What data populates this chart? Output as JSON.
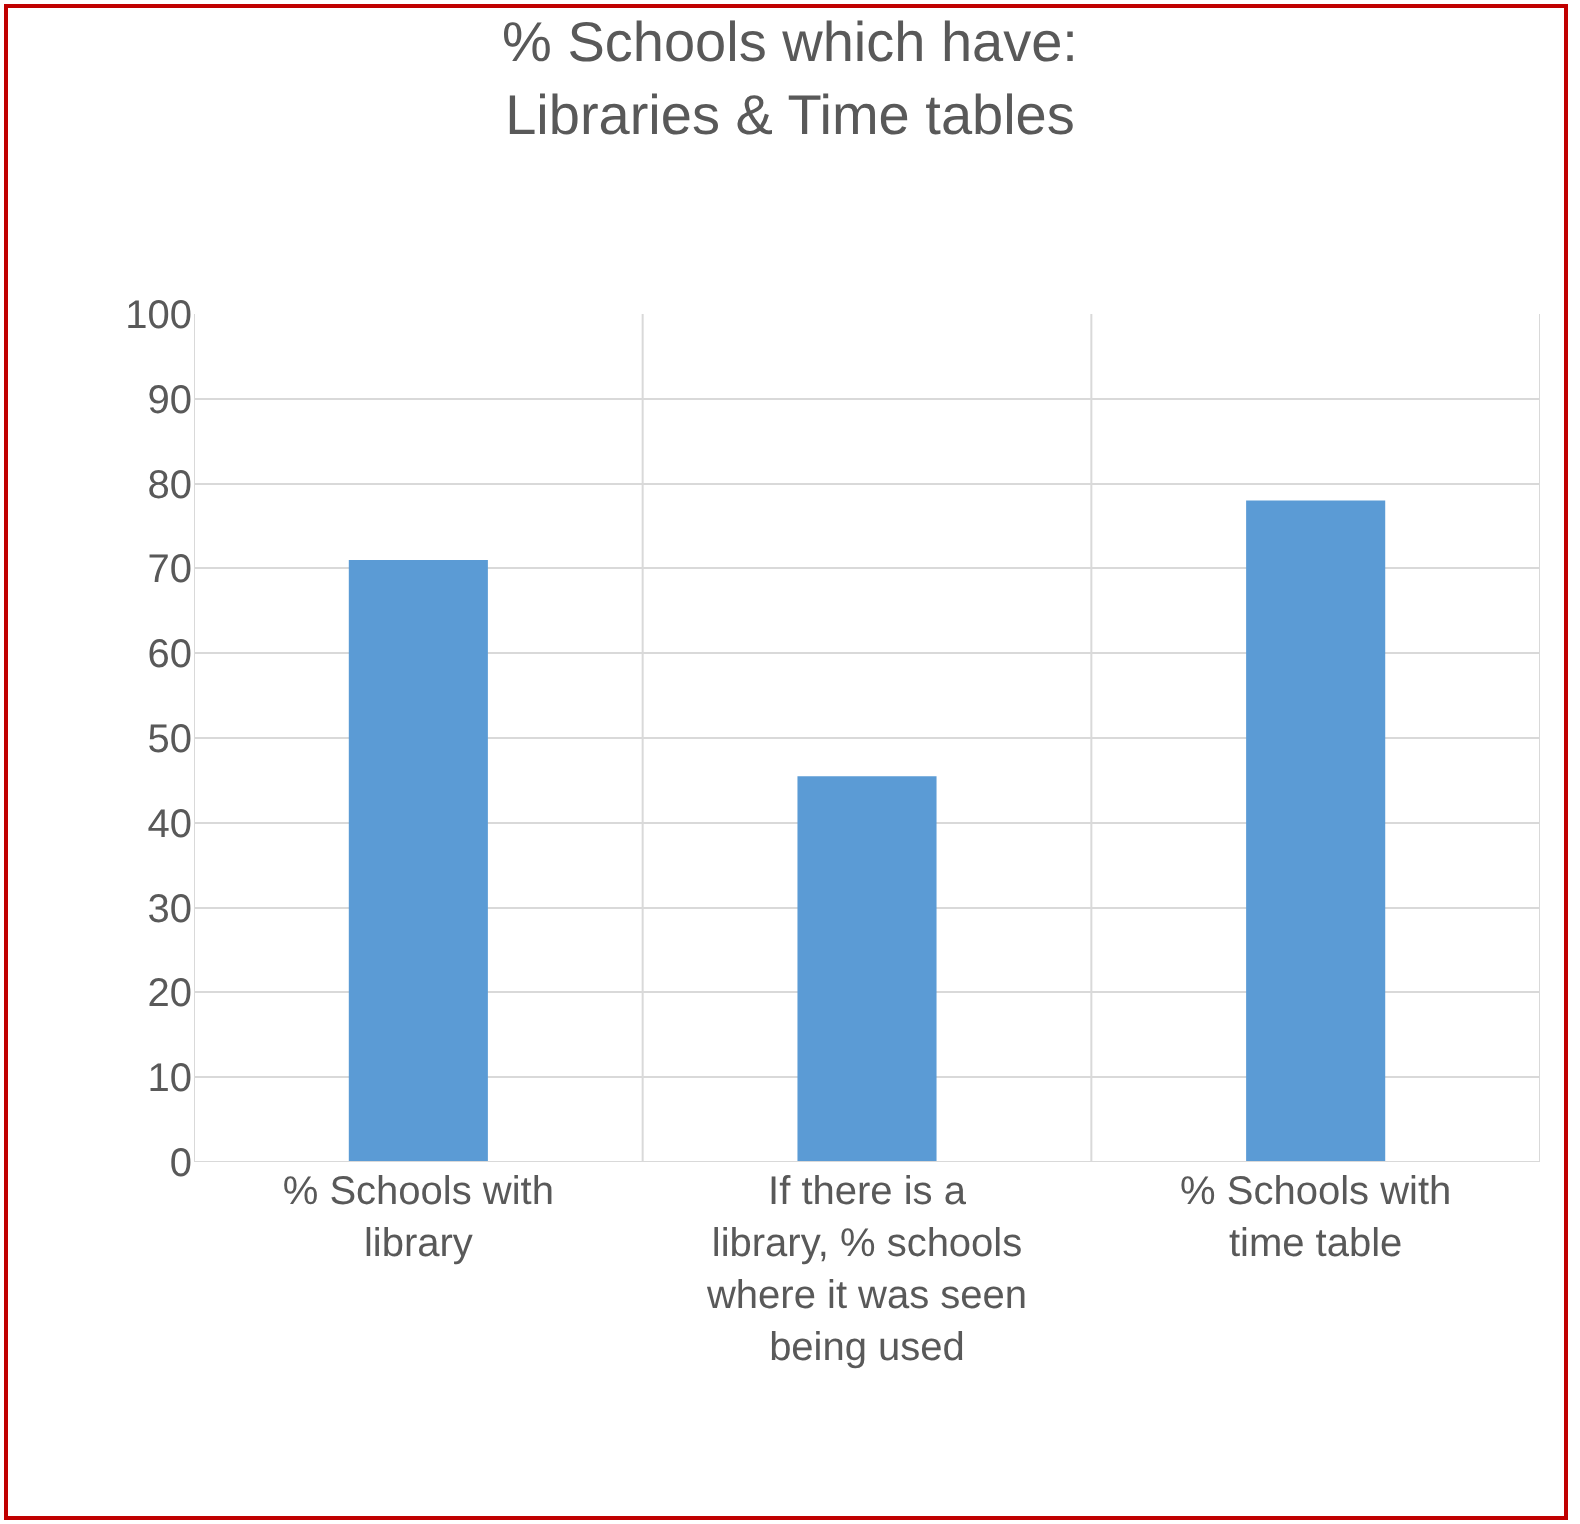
{
  "chart_data": {
    "type": "bar",
    "title": "% Schools which have:\nLibraries & Time tables",
    "categories": [
      "% Schools with library",
      "If there is a library, % schools where it was seen being used",
      "% Schools with time table"
    ],
    "values": [
      71,
      45.5,
      78
    ],
    "color": "#5b9bd5",
    "ylim": [
      0,
      100
    ],
    "yticks": [
      0,
      10,
      20,
      30,
      40,
      50,
      60,
      70,
      80,
      90,
      100
    ],
    "grid": true
  }
}
